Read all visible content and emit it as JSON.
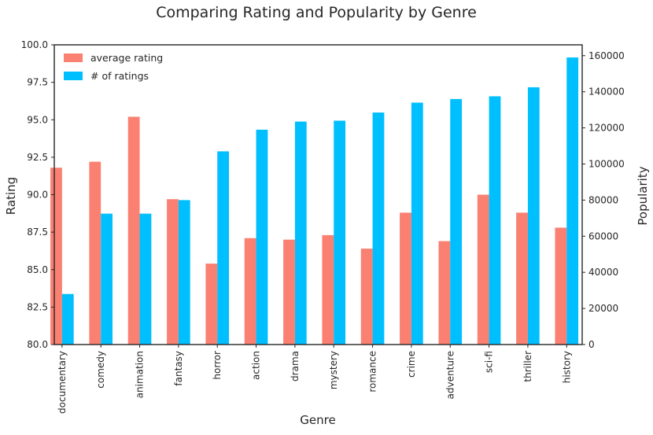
{
  "chart_data": {
    "type": "bar",
    "title": "Comparing Rating and Popularity by Genre",
    "xlabel": "Genre",
    "ylabel": "Rating",
    "y2label": "Popularity",
    "ylim": [
      80,
      100
    ],
    "y2lim": [
      0,
      166000
    ],
    "yticks": [
      "80.0",
      "82.5",
      "85.0",
      "87.5",
      "90.0",
      "92.5",
      "95.0",
      "97.5",
      "100.0"
    ],
    "y2ticks": [
      "0",
      "20000",
      "40000",
      "60000",
      "80000",
      "100000",
      "120000",
      "140000",
      "160000"
    ],
    "legend_position": "top-left",
    "categories": [
      "documentary",
      "comedy",
      "animation",
      "fantasy",
      "horror",
      "action",
      "drama",
      "mystery",
      "romance",
      "crime",
      "adventure",
      "sci-fi",
      "thriller",
      "history"
    ],
    "series": [
      {
        "name": "average rating",
        "axis": "left",
        "color": "#fa8072",
        "values": [
          91.8,
          92.2,
          95.2,
          89.7,
          85.4,
          87.1,
          87.0,
          87.3,
          86.4,
          88.8,
          86.9,
          90.0,
          88.8,
          87.8
        ]
      },
      {
        "name": "# of ratings",
        "axis": "right",
        "color": "#00bfff",
        "values": [
          28000,
          72500,
          72500,
          80000,
          107000,
          119000,
          123500,
          124000,
          128500,
          134000,
          136000,
          137500,
          142500,
          159000
        ]
      }
    ]
  }
}
